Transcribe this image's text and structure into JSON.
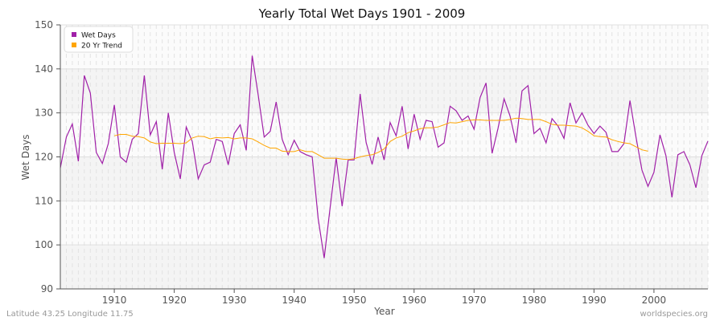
{
  "chart_data": {
    "type": "line",
    "title": "Yearly Total Wet Days 1901 - 2009",
    "xlabel": "Year",
    "ylabel": "Wet Days",
    "xlim": [
      1901,
      2009
    ],
    "ylim": [
      90,
      150
    ],
    "xticks": [
      1910,
      1920,
      1930,
      1940,
      1950,
      1960,
      1970,
      1980,
      1990,
      2000
    ],
    "yticks": [
      90,
      100,
      110,
      120,
      130,
      140,
      150
    ],
    "grid": true,
    "legend_position": "top-left",
    "series": [
      {
        "name": "Wet Days",
        "color": "#a020a8",
        "x_start": 1901,
        "values": [
          117.5,
          124.5,
          127.5,
          119,
          138.5,
          134.5,
          121,
          118.5,
          123,
          131.8,
          120,
          118.8,
          124,
          125.3,
          138.5,
          125,
          128,
          117.2,
          130,
          121,
          115,
          126.8,
          123.5,
          115,
          118.2,
          118.8,
          124,
          123.5,
          118.2,
          125.3,
          127.3,
          121.5,
          143,
          134,
          124.5,
          125.8,
          132.5,
          124,
          120.5,
          123.8,
          121.2,
          120.5,
          120,
          106,
          97,
          108.5,
          119.8,
          108.8,
          119.3,
          119.3,
          134.3,
          123.3,
          118.3,
          124.5,
          119.3,
          127.8,
          124.8,
          131.5,
          121.8,
          129.7,
          124,
          128.3,
          128,
          122.2,
          123.2,
          131.5,
          130.5,
          128.3,
          129.3,
          126.3,
          133.5,
          136.8,
          120.8,
          126.5,
          133.2,
          129.3,
          123.2,
          135,
          136.2,
          125.3,
          126.5,
          123.2,
          128.7,
          127,
          124.2,
          132.3,
          127.7,
          130,
          127.2,
          125.3,
          127,
          125.6,
          121.2,
          121.2,
          123,
          132.8,
          124.5,
          117,
          113.3,
          116.5,
          125,
          120.3,
          110.8,
          120.5,
          121.2,
          118.2,
          113,
          120.3,
          123.6
        ]
      },
      {
        "name": "20 Yr Trend",
        "color": "#ffa500",
        "x_start": 1910,
        "values": [
          124.8,
          125.1,
          125.1,
          124.7,
          124.6,
          124.3,
          123.4,
          123,
          123.1,
          123.1,
          123.1,
          123,
          123.2,
          124.3,
          124.7,
          124.6,
          124.1,
          124.4,
          124.3,
          124.4,
          124.1,
          124.3,
          124.3,
          124.1,
          123.4,
          122.6,
          122,
          122,
          121.3,
          121.2,
          121.2,
          121.6,
          121.2,
          121.2,
          120.5,
          119.7,
          119.7,
          119.7,
          119.5,
          119.4,
          119.6,
          120,
          120.3,
          120.5,
          121,
          121.8,
          123.5,
          124.3,
          124.7,
          125.5,
          125.9,
          126.4,
          126.6,
          126.6,
          126.8,
          127.3,
          127.8,
          127.7,
          128,
          128.3,
          128.4,
          128.4,
          128.3,
          128.3,
          128.3,
          128.3,
          128.5,
          128.8,
          128.7,
          128.5,
          128.5,
          128.5,
          128,
          127.4,
          127.2,
          127.2,
          127.1,
          127,
          126.6,
          125.8,
          124.8,
          124.6,
          124.5,
          123.9,
          123.5,
          123.2,
          123,
          122.3,
          121.6,
          121.3
        ]
      }
    ]
  },
  "footer": {
    "location": "Latitude 43.25 Longitude 11.75",
    "source": "worldspecies.org"
  }
}
